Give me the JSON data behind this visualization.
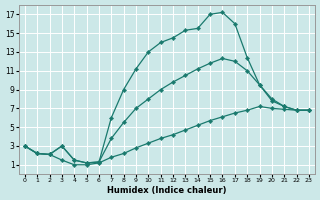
{
  "xlabel": "Humidex (Indice chaleur)",
  "bg_color": "#cce8e8",
  "grid_color": "#ffffff",
  "line_color": "#1a7a6e",
  "xlim": [
    -0.5,
    23.5
  ],
  "ylim": [
    0,
    18
  ],
  "xticks": [
    0,
    1,
    2,
    3,
    4,
    5,
    6,
    7,
    8,
    9,
    10,
    11,
    12,
    13,
    14,
    15,
    16,
    17,
    18,
    19,
    20,
    21,
    22,
    23
  ],
  "yticks": [
    1,
    3,
    5,
    7,
    9,
    11,
    13,
    15,
    17
  ],
  "line1_x": [
    0,
    1,
    2,
    3,
    4,
    5,
    6,
    7,
    8,
    9,
    10,
    11,
    12,
    13,
    14,
    15,
    16,
    17,
    18,
    19,
    20,
    21,
    22,
    23
  ],
  "line1_y": [
    3,
    2.2,
    2.1,
    3.0,
    1.5,
    1.2,
    1.3,
    6.0,
    9.0,
    11.2,
    13.0,
    14.0,
    14.5,
    15.3,
    15.5,
    17.0,
    17.2,
    16.0,
    12.4,
    9.5,
    8.0,
    7.2,
    6.8,
    6.8
  ],
  "line2_x": [
    0,
    1,
    2,
    3,
    4,
    5,
    6,
    7,
    8,
    9,
    10,
    11,
    12,
    13,
    14,
    15,
    16,
    17,
    18,
    19,
    20,
    21,
    22,
    23
  ],
  "line2_y": [
    3,
    2.2,
    2.1,
    3.0,
    1.5,
    1.2,
    1.3,
    3.8,
    5.5,
    7.0,
    8.0,
    9.0,
    9.8,
    10.5,
    11.2,
    11.8,
    12.3,
    12.0,
    11.0,
    9.5,
    7.8,
    7.2,
    6.8,
    6.8
  ],
  "line3_x": [
    0,
    1,
    2,
    3,
    4,
    5,
    6,
    7,
    8,
    9,
    10,
    11,
    12,
    13,
    14,
    15,
    16,
    17,
    18,
    19,
    20,
    21,
    22,
    23
  ],
  "line3_y": [
    3,
    2.2,
    2.1,
    1.5,
    1.0,
    1.0,
    1.2,
    1.8,
    2.2,
    2.8,
    3.3,
    3.8,
    4.2,
    4.7,
    5.2,
    5.7,
    6.1,
    6.5,
    6.8,
    7.2,
    7.0,
    6.9,
    6.8,
    6.8
  ]
}
